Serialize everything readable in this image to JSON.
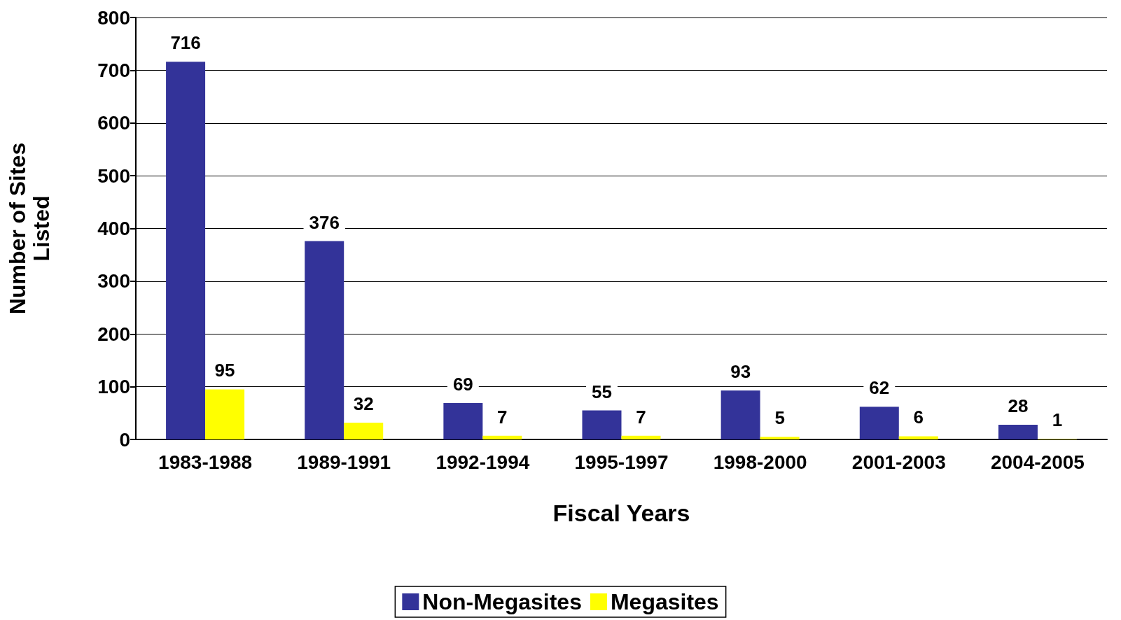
{
  "chart_data": {
    "type": "bar",
    "xlabel": "Fiscal Years",
    "ylabel": "Number of Sites Listed",
    "categories": [
      "1983-1988",
      "1989-1991",
      "1992-1994",
      "1995-1997",
      "1998-2000",
      "2001-2003",
      "2004-2005"
    ],
    "series": [
      {
        "name": "Non-Megasites",
        "color": "#333399",
        "values": [
          716,
          376,
          69,
          55,
          93,
          62,
          28
        ]
      },
      {
        "name": "Megasites",
        "color": "#ffff00",
        "values": [
          95,
          32,
          7,
          7,
          5,
          6,
          1
        ]
      }
    ],
    "ylim": [
      0,
      800
    ],
    "yticks": [
      0,
      100,
      200,
      300,
      400,
      500,
      600,
      700,
      800
    ],
    "grid": "y",
    "legend": "bottom",
    "data_labels": true
  }
}
